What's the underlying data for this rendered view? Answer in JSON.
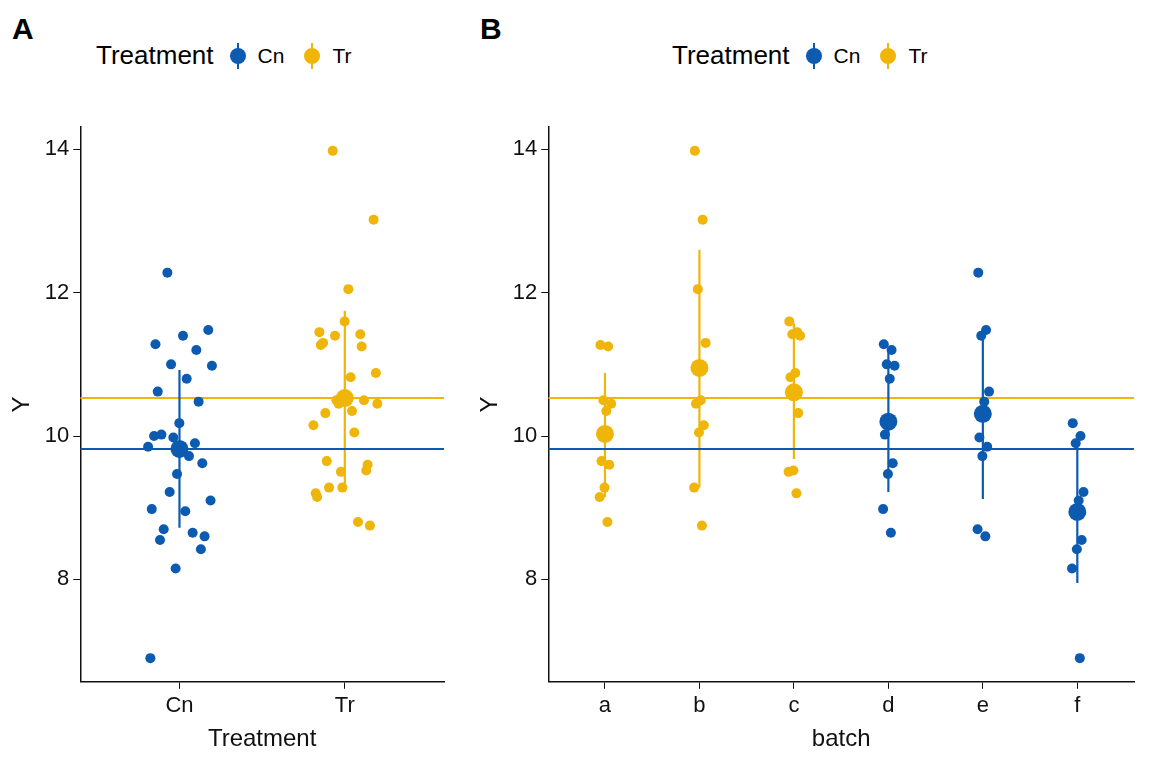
{
  "chart_data": [
    {
      "type": "scatter",
      "title": "A",
      "x_label": "Treatment",
      "y_label": "Y",
      "legend": "top",
      "legend_title": "Treatment",
      "categories": [
        "Cn",
        "Tr"
      ],
      "ylim": [
        6.57,
        14.31
      ],
      "yticks": [
        8,
        10,
        12,
        14
      ],
      "grid": false,
      "series": [
        {
          "name": "Cn",
          "color": "#0C5BB0",
          "mean_line": 9.82,
          "groups": [
            {
              "category": "Cn",
              "values": [
                11.28,
                11.2,
                11.0,
                10.98,
                10.8,
                10.02,
                9.62,
                9.47,
                8.98,
                8.65,
                12.28,
                11.48,
                11.4,
                10.62,
                10.48,
                9.98,
                9.85,
                9.72,
                8.7,
                8.6,
                10.18,
                10.0,
                9.9,
                9.22,
                9.1,
                8.95,
                8.55,
                8.42,
                8.15,
                6.9
              ],
              "mean": 9.82,
              "error_low": 8.72,
              "error_high": 10.92
            }
          ]
        },
        {
          "name": "Tr",
          "color": "#EFB509",
          "mean_line": 10.53,
          "groups": [
            {
              "category": "Tr",
              "values": [
                11.27,
                11.25,
                10.5,
                10.45,
                10.35,
                9.65,
                9.6,
                9.28,
                9.15,
                8.8,
                13.98,
                13.02,
                12.05,
                11.3,
                10.5,
                10.45,
                10.15,
                10.05,
                9.28,
                8.75,
                11.6,
                11.45,
                11.42,
                11.4,
                10.88,
                10.82,
                10.32,
                9.52,
                9.5,
                9.2
              ],
              "mean": 10.53,
              "error_low": 9.33,
              "error_high": 11.75
            }
          ]
        }
      ]
    },
    {
      "type": "scatter",
      "title": "B",
      "x_label": "batch",
      "y_label": "Y",
      "legend": "top",
      "legend_title": "Treatment",
      "categories": [
        "a",
        "b",
        "c",
        "d",
        "e",
        "f"
      ],
      "ylim": [
        6.57,
        14.31
      ],
      "yticks": [
        8,
        10,
        12,
        14
      ],
      "grid": false,
      "series": [
        {
          "name": "Cn",
          "color": "#0C5BB0",
          "mean_line": 9.82,
          "groups": [
            {
              "category": "d",
              "values": [
                11.28,
                11.2,
                11.0,
                10.98,
                10.8,
                10.02,
                9.62,
                9.47,
                8.98,
                8.65
              ],
              "mean": 10.2,
              "error_low": 9.22,
              "error_high": 11.17
            },
            {
              "category": "e",
              "values": [
                12.28,
                11.48,
                11.4,
                10.62,
                10.48,
                9.98,
                9.85,
                9.72,
                8.7,
                8.6
              ],
              "mean": 10.31,
              "error_low": 9.12,
              "error_high": 11.45
            },
            {
              "category": "f",
              "values": [
                10.18,
                10.0,
                9.9,
                9.22,
                9.1,
                8.95,
                8.55,
                8.42,
                8.15,
                6.9
              ],
              "mean": 8.94,
              "error_low": 7.95,
              "error_high": 9.9
            }
          ]
        },
        {
          "name": "Tr",
          "color": "#EFB509",
          "mean_line": 10.53,
          "groups": [
            {
              "category": "a",
              "values": [
                11.27,
                11.25,
                10.5,
                10.45,
                10.35,
                9.65,
                9.6,
                9.28,
                9.15,
                8.8
              ],
              "mean": 10.03,
              "error_low": 9.15,
              "error_high": 10.88
            },
            {
              "category": "b",
              "values": [
                13.98,
                13.02,
                12.05,
                11.3,
                10.5,
                10.45,
                10.15,
                10.05,
                9.28,
                8.75
              ],
              "mean": 10.95,
              "error_low": 9.28,
              "error_high": 12.6
            },
            {
              "category": "c",
              "values": [
                11.6,
                11.45,
                11.42,
                11.4,
                10.88,
                10.82,
                10.32,
                9.52,
                9.5,
                9.2
              ],
              "mean": 10.61,
              "error_low": 9.68,
              "error_high": 11.57
            }
          ]
        }
      ]
    }
  ]
}
